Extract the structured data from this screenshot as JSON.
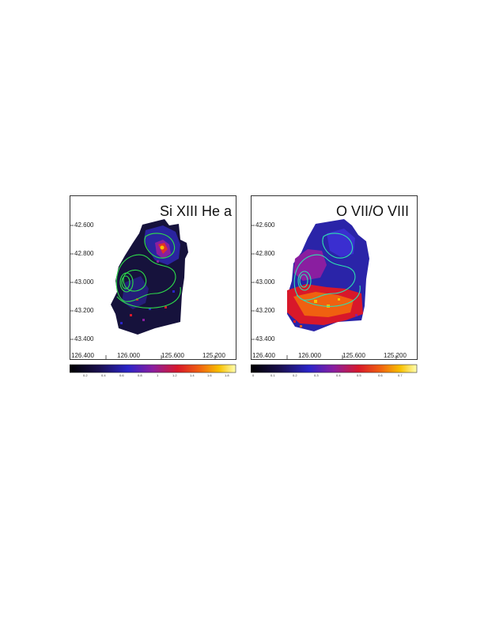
{
  "panels": [
    {
      "title": "Si XIII He a",
      "y_ticks": [
        "42.600",
        "42.800",
        "43.000",
        "43.200",
        "43.400"
      ],
      "x_ticks": [
        "126.400",
        "126.000",
        "125.600",
        "125.200"
      ],
      "colorbar_ticks": [
        "0.2",
        "0.4",
        "0.6",
        "0.8",
        "1",
        "1.2",
        "1.4",
        "1.6",
        "1.8"
      ]
    },
    {
      "title": "O VII/O VIII",
      "y_ticks": [
        "42.600",
        "42.800",
        "43.000",
        "43.200",
        "43.400"
      ],
      "x_ticks": [
        "126.400",
        "126.000",
        "125.600",
        "125.200"
      ],
      "colorbar_ticks": [
        "0",
        "0.1",
        "0.2",
        "0.3",
        "0.4",
        "0.5",
        "0.6",
        "0.7"
      ]
    }
  ],
  "colors": {
    "contour": "#2ee04a",
    "colormap": [
      "#000000",
      "#1a1050",
      "#2a24c8",
      "#8a1ea0",
      "#d8182a",
      "#f06010",
      "#f8c000",
      "#ffffb0"
    ]
  }
}
